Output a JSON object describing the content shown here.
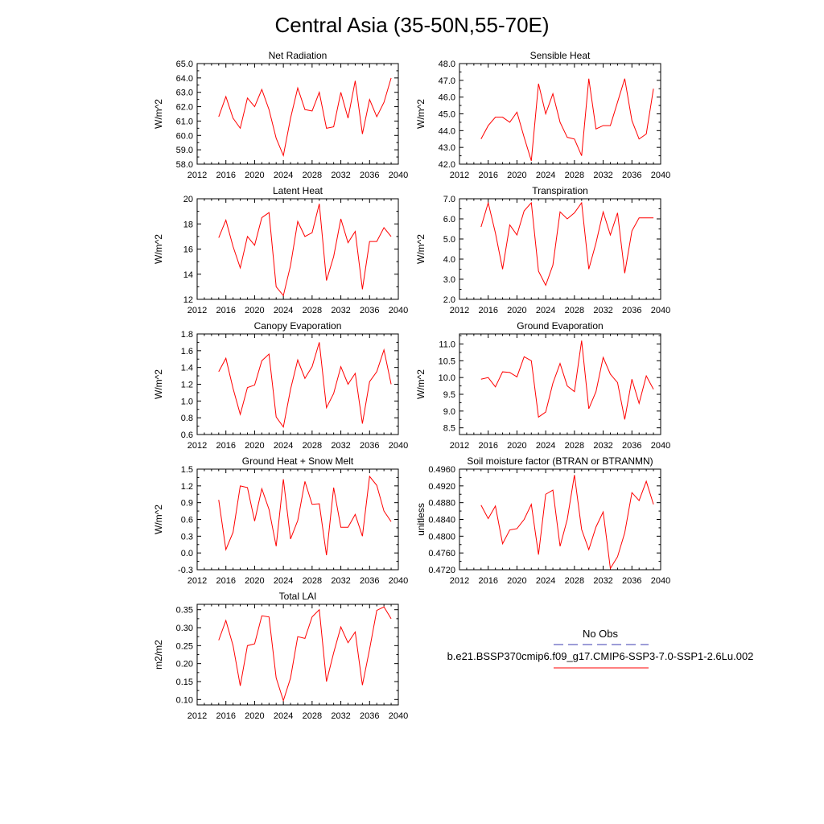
{
  "figure_title": "Central Asia (35-50N,55-70E)",
  "colors": {
    "line": "#ff0000",
    "obs": "#3b3bb0",
    "axis": "#000000"
  },
  "legend": {
    "obs_label": "No Obs",
    "case_label": "b.e21.BSSP370cmip6.f09_g17.CMIP6-SSP3-7.0-SSP1-2.6Lu.002"
  },
  "chart_data": [
    {
      "type": "line",
      "title": "Net Radiation",
      "ylabel": "W/m^2",
      "xlim": [
        2012,
        2040
      ],
      "ylim": [
        58.0,
        65.0
      ],
      "xticks": [
        2012,
        2016,
        2020,
        2024,
        2028,
        2032,
        2036,
        2040
      ],
      "yticks": [
        "58.0",
        "59.0",
        "60.0",
        "61.0",
        "62.0",
        "63.0",
        "64.0",
        "65.0"
      ],
      "x": [
        2015,
        2016,
        2017,
        2018,
        2019,
        2020,
        2021,
        2022,
        2023,
        2024,
        2025,
        2026,
        2027,
        2028,
        2029,
        2030,
        2031,
        2032,
        2033,
        2034,
        2035,
        2036,
        2037,
        2038,
        2039
      ],
      "values": [
        61.3,
        62.7,
        61.2,
        60.5,
        62.6,
        62.0,
        63.2,
        61.8,
        59.8,
        58.6,
        61.2,
        63.3,
        61.8,
        61.7,
        63.0,
        60.5,
        60.6,
        63.0,
        61.2,
        63.8,
        60.1,
        62.5,
        61.3,
        62.3,
        64.0
      ]
    },
    {
      "type": "line",
      "title": "Sensible Heat",
      "ylabel": "W/m^2",
      "xlim": [
        2012,
        2040
      ],
      "ylim": [
        42.0,
        48.0
      ],
      "xticks": [
        2012,
        2016,
        2020,
        2024,
        2028,
        2032,
        2036,
        2040
      ],
      "yticks": [
        "42.0",
        "43.0",
        "44.0",
        "45.0",
        "46.0",
        "47.0",
        "48.0"
      ],
      "x": [
        2015,
        2016,
        2017,
        2018,
        2019,
        2020,
        2021,
        2022,
        2023,
        2024,
        2025,
        2026,
        2027,
        2028,
        2029,
        2030,
        2031,
        2032,
        2033,
        2034,
        2035,
        2036,
        2037,
        2038,
        2039
      ],
      "values": [
        43.5,
        44.3,
        44.8,
        44.8,
        44.5,
        45.1,
        43.6,
        42.2,
        46.8,
        45.0,
        46.2,
        44.5,
        43.6,
        43.5,
        42.5,
        47.1,
        44.1,
        44.3,
        44.3,
        45.7,
        47.1,
        44.6,
        43.5,
        43.8,
        46.5
      ]
    },
    {
      "type": "line",
      "title": "Latent Heat",
      "ylabel": "W/m^2",
      "xlim": [
        2012,
        2040
      ],
      "ylim": [
        12,
        20
      ],
      "xticks": [
        2012,
        2016,
        2020,
        2024,
        2028,
        2032,
        2036,
        2040
      ],
      "yticks": [
        "12",
        "14",
        "16",
        "18",
        "20"
      ],
      "x": [
        2015,
        2016,
        2017,
        2018,
        2019,
        2020,
        2021,
        2022,
        2023,
        2024,
        2025,
        2026,
        2027,
        2028,
        2029,
        2030,
        2031,
        2032,
        2033,
        2034,
        2035,
        2036,
        2037,
        2038,
        2039
      ],
      "values": [
        16.9,
        18.3,
        16.2,
        14.5,
        17.0,
        16.3,
        18.5,
        18.9,
        13.0,
        12.3,
        14.7,
        18.2,
        17.0,
        17.3,
        19.6,
        13.5,
        15.4,
        18.4,
        16.5,
        17.4,
        12.8,
        16.6,
        16.6,
        17.7,
        17.0
      ]
    },
    {
      "type": "line",
      "title": "Transpiration",
      "ylabel": "W/m^2",
      "xlim": [
        2012,
        2040
      ],
      "ylim": [
        2.0,
        7.0
      ],
      "xticks": [
        2012,
        2016,
        2020,
        2024,
        2028,
        2032,
        2036,
        2040
      ],
      "yticks": [
        "2.0",
        "3.0",
        "4.0",
        "5.0",
        "6.0",
        "7.0"
      ],
      "x": [
        2015,
        2016,
        2017,
        2018,
        2019,
        2020,
        2021,
        2022,
        2023,
        2024,
        2025,
        2026,
        2027,
        2028,
        2029,
        2030,
        2031,
        2032,
        2033,
        2034,
        2035,
        2036,
        2037,
        2038,
        2039
      ],
      "values": [
        5.6,
        6.8,
        5.3,
        3.5,
        5.7,
        5.2,
        6.4,
        6.8,
        3.4,
        2.7,
        3.7,
        6.35,
        6.0,
        6.3,
        6.8,
        3.5,
        4.8,
        6.35,
        5.2,
        6.3,
        3.3,
        5.4,
        6.05,
        6.05,
        6.05
      ]
    },
    {
      "type": "line",
      "title": "Canopy Evaporation",
      "ylabel": "W/m^2",
      "xlim": [
        2012,
        2040
      ],
      "ylim": [
        0.6,
        1.8
      ],
      "xticks": [
        2012,
        2016,
        2020,
        2024,
        2028,
        2032,
        2036,
        2040
      ],
      "yticks": [
        "0.6",
        "0.8",
        "1.0",
        "1.2",
        "1.4",
        "1.6",
        "1.8"
      ],
      "x": [
        2015,
        2016,
        2017,
        2018,
        2019,
        2020,
        2021,
        2022,
        2023,
        2024,
        2025,
        2026,
        2027,
        2028,
        2029,
        2030,
        2031,
        2032,
        2033,
        2034,
        2035,
        2036,
        2037,
        2038,
        2039
      ],
      "values": [
        1.35,
        1.51,
        1.15,
        0.84,
        1.16,
        1.19,
        1.48,
        1.56,
        0.81,
        0.69,
        1.14,
        1.49,
        1.27,
        1.41,
        1.7,
        0.92,
        1.09,
        1.41,
        1.2,
        1.33,
        0.73,
        1.23,
        1.35,
        1.61,
        1.2
      ]
    },
    {
      "type": "line",
      "title": "Ground Evaporation",
      "ylabel": "W/m^2",
      "xlim": [
        2012,
        2040
      ],
      "ylim": [
        8.3,
        11.3
      ],
      "xticks": [
        2012,
        2016,
        2020,
        2024,
        2028,
        2032,
        2036,
        2040
      ],
      "yticks": [
        "8.5",
        "9.0",
        "9.5",
        "10.0",
        "10.5",
        "11.0"
      ],
      "x": [
        2015,
        2016,
        2017,
        2018,
        2019,
        2020,
        2021,
        2022,
        2023,
        2024,
        2025,
        2026,
        2027,
        2028,
        2029,
        2030,
        2031,
        2032,
        2033,
        2034,
        2035,
        2036,
        2037,
        2038,
        2039
      ],
      "values": [
        9.95,
        10.0,
        9.72,
        10.17,
        10.15,
        10.02,
        10.62,
        10.5,
        8.82,
        8.97,
        9.83,
        10.42,
        9.75,
        9.58,
        11.1,
        9.07,
        9.58,
        10.6,
        10.1,
        9.85,
        8.75,
        9.95,
        9.23,
        10.05,
        9.65
      ]
    },
    {
      "type": "line",
      "title": "Ground Heat + Snow Melt",
      "ylabel": "W/m^2",
      "xlim": [
        2012,
        2040
      ],
      "ylim": [
        -0.3,
        1.5
      ],
      "xticks": [
        2012,
        2016,
        2020,
        2024,
        2028,
        2032,
        2036,
        2040
      ],
      "yticks": [
        "-0.3",
        "0.0",
        "0.3",
        "0.6",
        "0.9",
        "1.2",
        "1.5"
      ],
      "x": [
        2015,
        2016,
        2017,
        2018,
        2019,
        2020,
        2021,
        2022,
        2023,
        2024,
        2025,
        2026,
        2027,
        2028,
        2029,
        2030,
        2031,
        2032,
        2033,
        2034,
        2035,
        2036,
        2037,
        2038,
        2039
      ],
      "values": [
        0.95,
        0.06,
        0.37,
        1.2,
        1.17,
        0.57,
        1.15,
        0.78,
        0.12,
        1.32,
        0.25,
        0.58,
        1.28,
        0.87,
        0.88,
        -0.04,
        1.17,
        0.46,
        0.46,
        0.69,
        0.3,
        1.37,
        1.21,
        0.75,
        0.56
      ]
    },
    {
      "type": "line",
      "title": "Soil moisture factor (BTRAN or BTRANMN)",
      "ylabel": "unitless",
      "xlim": [
        2012,
        2040
      ],
      "ylim": [
        0.472,
        0.496
      ],
      "xticks": [
        2012,
        2016,
        2020,
        2024,
        2028,
        2032,
        2036,
        2040
      ],
      "yticks": [
        "0.4720",
        "0.4760",
        "0.4800",
        "0.4840",
        "0.4880",
        "0.4920",
        "0.4960"
      ],
      "x": [
        2015,
        2016,
        2017,
        2018,
        2019,
        2020,
        2021,
        2022,
        2023,
        2024,
        2025,
        2026,
        2027,
        2028,
        2029,
        2030,
        2031,
        2032,
        2033,
        2034,
        2035,
        2036,
        2037,
        2038,
        2039
      ],
      "values": [
        0.4874,
        0.4842,
        0.4872,
        0.4782,
        0.4815,
        0.4818,
        0.484,
        0.4876,
        0.4756,
        0.49,
        0.491,
        0.4776,
        0.484,
        0.4946,
        0.4816,
        0.4768,
        0.4822,
        0.4858,
        0.4723,
        0.4751,
        0.4808,
        0.4904,
        0.4885,
        0.4931,
        0.4876
      ]
    },
    {
      "type": "line",
      "title": "Total LAI",
      "ylabel": "m2/m2",
      "xlim": [
        2012,
        2040
      ],
      "ylim": [
        0.085,
        0.365
      ],
      "xticks": [
        2012,
        2016,
        2020,
        2024,
        2028,
        2032,
        2036,
        2040
      ],
      "yticks": [
        "0.10",
        "0.15",
        "0.20",
        "0.25",
        "0.30",
        "0.35"
      ],
      "x": [
        2015,
        2016,
        2017,
        2018,
        2019,
        2020,
        2021,
        2022,
        2023,
        2024,
        2025,
        2026,
        2027,
        2028,
        2029,
        2030,
        2031,
        2032,
        2033,
        2034,
        2035,
        2036,
        2037,
        2038,
        2039
      ],
      "values": [
        0.265,
        0.32,
        0.25,
        0.138,
        0.25,
        0.255,
        0.333,
        0.33,
        0.16,
        0.097,
        0.16,
        0.275,
        0.27,
        0.33,
        0.35,
        0.15,
        0.23,
        0.302,
        0.258,
        0.288,
        0.14,
        0.24,
        0.348,
        0.358,
        0.325
      ]
    }
  ]
}
